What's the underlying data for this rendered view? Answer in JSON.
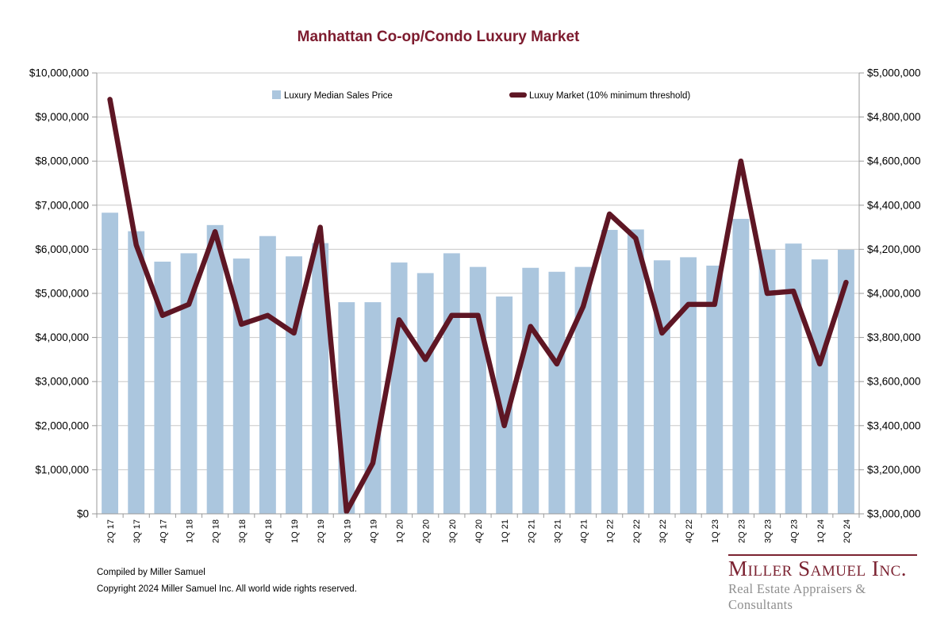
{
  "title": "Manhattan Co-op/Condo Luxury Market",
  "legend": {
    "bar_label": "Luxury Median Sales Price",
    "line_label": "Luxuy Market (10% minimum threshold)"
  },
  "footer": {
    "line1": "Compiled by Miller Samuel",
    "line2": "Copyright 2024 Miller Samuel Inc.  All world wide rights reserved."
  },
  "logo": {
    "name": "Miller Samuel Inc.",
    "tagline": "Real Estate Appraisers & Consultants"
  },
  "colors": {
    "bar": "#ABC6DE",
    "line": "#5E1624",
    "title": "#7D1B2E",
    "grid": "#C8C8C8",
    "axis": "#9A9A9A",
    "tick_text": "#000000",
    "logo_red": "#7B2231",
    "logo_gray": "#8F8F8F",
    "background": "#FFFFFF"
  },
  "chart_data": {
    "type": "bar+line combo",
    "grid": true,
    "legend_position": "top-inside",
    "categories": [
      "2Q 17",
      "3Q 17",
      "4Q 17",
      "1Q 18",
      "2Q 18",
      "3Q 18",
      "4Q 18",
      "1Q 19",
      "2Q 19",
      "3Q 19",
      "4Q 19",
      "1Q 20",
      "2Q 20",
      "3Q 20",
      "4Q 20",
      "1Q 21",
      "2Q 21",
      "3Q 21",
      "4Q 21",
      "1Q 22",
      "2Q 22",
      "3Q 22",
      "4Q 22",
      "1Q 23",
      "2Q 23",
      "3Q 23",
      "4Q 23",
      "1Q 24",
      "2Q 24"
    ],
    "series": [
      {
        "name": "Luxury Median Sales Price",
        "type": "bar",
        "axis": "left",
        "values": [
          6830000,
          6410000,
          5720000,
          5910000,
          6550000,
          5790000,
          6300000,
          5840000,
          6140000,
          4800000,
          4800000,
          5700000,
          5460000,
          5910000,
          5600000,
          4930000,
          5580000,
          5490000,
          5600000,
          6440000,
          6450000,
          5750000,
          5820000,
          5630000,
          6690000,
          5990000,
          6130000,
          5770000,
          5990000
        ]
      },
      {
        "name": "Luxuy Market (10% minimum threshold)",
        "type": "line",
        "axis": "right",
        "values": [
          4880000,
          4220000,
          3900000,
          3950000,
          4280000,
          3860000,
          3900000,
          3820000,
          4300000,
          3010000,
          3230000,
          3880000,
          3700000,
          3900000,
          3900000,
          3400000,
          3850000,
          3680000,
          3940000,
          4360000,
          4250000,
          3820000,
          3950000,
          3950000,
          4600000,
          4000000,
          4010000,
          3680000,
          4050000
        ]
      }
    ],
    "y_left": {
      "min": 0,
      "max": 10000000,
      "step": 1000000,
      "tick_labels": [
        "$0",
        "$1,000,000",
        "$2,000,000",
        "$3,000,000",
        "$4,000,000",
        "$5,000,000",
        "$6,000,000",
        "$7,000,000",
        "$8,000,000",
        "$9,000,000",
        "$10,000,000"
      ]
    },
    "y_right": {
      "min": 3000000,
      "max": 5000000,
      "step": 200000,
      "tick_labels": [
        "$3,000,000",
        "$3,200,000",
        "$3,400,000",
        "$3,600,000",
        "$3,800,000",
        "$4,000,000",
        "$4,200,000",
        "$4,400,000",
        "$4,600,000",
        "$4,800,000",
        "$5,000,000"
      ]
    }
  }
}
